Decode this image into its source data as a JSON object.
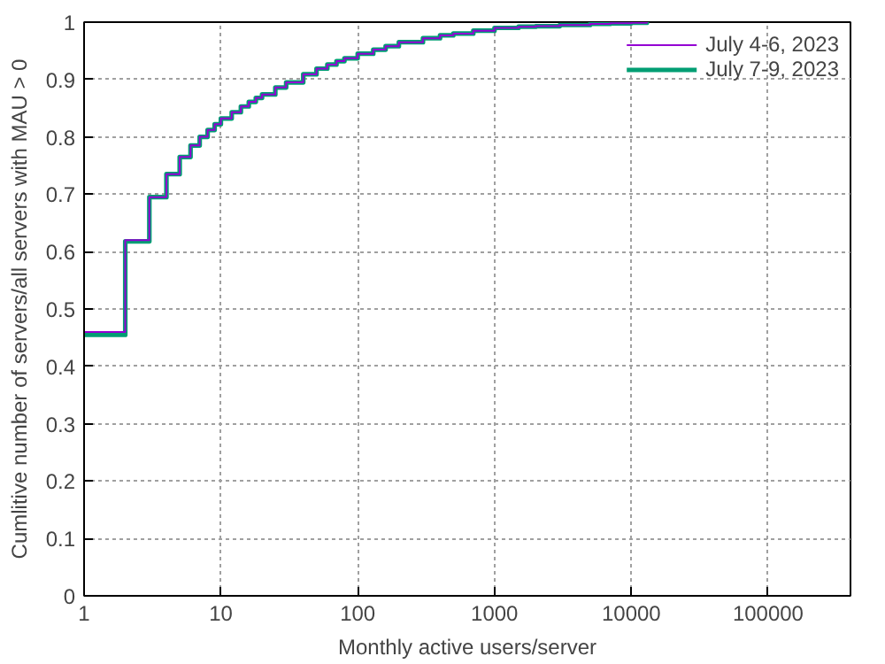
{
  "chart_data": {
    "type": "step",
    "xlabel": "Monthly active users/server",
    "ylabel": "Cumlitive number of servers/all servers with MAU > 0",
    "log": "x",
    "grid": true,
    "legend": "top right",
    "xlim": [
      1,
      400000
    ],
    "xticks": [
      1,
      10,
      100,
      1000,
      10000,
      100000
    ],
    "ylim": [
      0,
      1
    ],
    "yticks": [
      0,
      0.1,
      0.2,
      0.3,
      0.4,
      0.5,
      0.6,
      0.7,
      0.8,
      0.9,
      1
    ],
    "x": [
      1,
      2,
      3,
      4,
      5,
      6,
      7,
      8,
      9,
      10,
      12,
      14,
      16,
      18,
      20,
      25,
      30,
      40,
      50,
      60,
      70,
      80,
      100,
      130,
      160,
      200,
      300,
      400,
      500,
      700,
      1000,
      1500,
      2000,
      3000,
      5000,
      7000,
      10000,
      13000
    ],
    "series": [
      {
        "name": "July 4-6, 2023",
        "color": "#9400d3",
        "values": [
          0.46,
          0.62,
          0.695,
          0.735,
          0.765,
          0.785,
          0.8,
          0.812,
          0.822,
          0.832,
          0.843,
          0.853,
          0.861,
          0.868,
          0.874,
          0.886,
          0.895,
          0.909,
          0.919,
          0.926,
          0.932,
          0.937,
          0.945,
          0.952,
          0.958,
          0.965,
          0.972,
          0.977,
          0.98,
          0.985,
          0.99,
          0.992,
          0.993,
          0.995,
          0.997,
          0.998,
          0.999,
          1.0
        ]
      },
      {
        "name": "July 7-9, 2023",
        "color": "#009e73",
        "values": [
          0.455,
          0.618,
          0.695,
          0.735,
          0.765,
          0.785,
          0.8,
          0.812,
          0.822,
          0.832,
          0.843,
          0.853,
          0.861,
          0.868,
          0.874,
          0.886,
          0.895,
          0.909,
          0.919,
          0.926,
          0.932,
          0.937,
          0.945,
          0.952,
          0.958,
          0.965,
          0.972,
          0.977,
          0.98,
          0.985,
          0.99,
          0.992,
          0.993,
          0.995,
          0.997,
          0.998,
          0.999,
          1.0
        ]
      }
    ]
  }
}
